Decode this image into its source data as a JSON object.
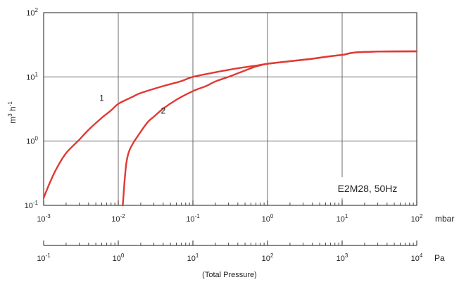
{
  "chart_data": {
    "type": "line",
    "title": "",
    "annotation": "E2M28, 50Hz",
    "ylabel": {
      "base": "m",
      "exp1": "3",
      "mid": " h",
      "exp2": "-1"
    },
    "y_scale": "log",
    "ylim": [
      0.1,
      100
    ],
    "y_ticks": [
      {
        "base": "10",
        "exp": "-1",
        "value": 0.1
      },
      {
        "base": "10",
        "exp": "0",
        "value": 1
      },
      {
        "base": "10",
        "exp": "1",
        "value": 10
      },
      {
        "base": "10",
        "exp": "2",
        "value": 100
      }
    ],
    "x_scale": "log",
    "xlim": [
      0.001,
      100
    ],
    "x_unit": "mbar",
    "x_ticks": [
      {
        "base": "10",
        "exp": "-3",
        "value": 0.001
      },
      {
        "base": "10",
        "exp": "-2",
        "value": 0.01
      },
      {
        "base": "10",
        "exp": "-1",
        "value": 0.1
      },
      {
        "base": "10",
        "exp": "0",
        "value": 1
      },
      {
        "base": "10",
        "exp": "1",
        "value": 10
      },
      {
        "base": "10",
        "exp": "2",
        "value": 100
      }
    ],
    "x2_unit": "Pa",
    "x2_ticks": [
      {
        "base": "10",
        "exp": "-1",
        "value": 0.1
      },
      {
        "base": "10",
        "exp": "0",
        "value": 1
      },
      {
        "base": "10",
        "exp": "1",
        "value": 10
      },
      {
        "base": "10",
        "exp": "2",
        "value": 100
      },
      {
        "base": "10",
        "exp": "3",
        "value": 1000
      },
      {
        "base": "10",
        "exp": "4",
        "value": 10000
      }
    ],
    "x2_caption": "(Total Pressure)",
    "grid": true,
    "series": [
      {
        "name": "1",
        "color": "#e03a35",
        "points": [
          [
            0.001,
            0.13
          ],
          [
            0.0012,
            0.22
          ],
          [
            0.0015,
            0.38
          ],
          [
            0.002,
            0.65
          ],
          [
            0.003,
            1.05
          ],
          [
            0.004,
            1.5
          ],
          [
            0.006,
            2.3
          ],
          [
            0.008,
            3.0
          ],
          [
            0.01,
            3.8
          ],
          [
            0.015,
            4.8
          ],
          [
            0.02,
            5.6
          ],
          [
            0.04,
            7.2
          ],
          [
            0.07,
            8.6
          ],
          [
            0.1,
            10.0
          ],
          [
            0.2,
            11.8
          ],
          [
            0.4,
            13.6
          ],
          [
            0.7,
            15.0
          ],
          [
            1.0,
            16.0
          ],
          [
            2.0,
            17.5
          ],
          [
            4.0,
            19.2
          ],
          [
            7.0,
            21.0
          ],
          [
            10.0,
            22.0
          ],
          [
            15.0,
            24.0
          ],
          [
            30.0,
            24.8
          ],
          [
            100.0,
            25.0
          ]
        ]
      },
      {
        "name": "2",
        "color": "#e03a35",
        "points": [
          [
            0.0115,
            0.1
          ],
          [
            0.012,
            0.2
          ],
          [
            0.0125,
            0.35
          ],
          [
            0.013,
            0.5
          ],
          [
            0.014,
            0.7
          ],
          [
            0.016,
            0.95
          ],
          [
            0.02,
            1.4
          ],
          [
            0.025,
            2.0
          ],
          [
            0.03,
            2.4
          ],
          [
            0.04,
            3.2
          ],
          [
            0.06,
            4.4
          ],
          [
            0.1,
            6.0
          ],
          [
            0.15,
            7.2
          ],
          [
            0.2,
            8.5
          ],
          [
            0.3,
            10.0
          ],
          [
            0.5,
            12.6
          ],
          [
            0.7,
            14.5
          ],
          [
            1.0,
            16.0
          ],
          [
            2.0,
            17.5
          ],
          [
            4.0,
            19.2
          ],
          [
            7.0,
            21.0
          ],
          [
            10.0,
            22.0
          ],
          [
            15.0,
            24.0
          ],
          [
            30.0,
            24.8
          ],
          [
            100.0,
            25.0
          ]
        ]
      }
    ],
    "series_labels": [
      {
        "text": "1",
        "x": 0.006,
        "y": 4.2
      },
      {
        "text": "2",
        "x": 0.04,
        "y": 2.7
      }
    ]
  }
}
